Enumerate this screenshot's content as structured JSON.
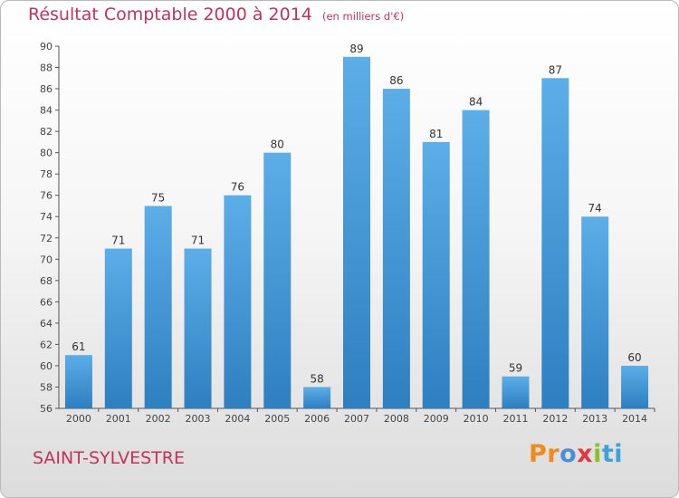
{
  "title": "Résultat Comptable 2000 à 2014",
  "unit_note": "(en milliers d'€)",
  "place": "SAINT-SYLVESTRE",
  "logo": {
    "parts": [
      "Pr",
      "o",
      "x",
      "i",
      "ti"
    ]
  },
  "colors": {
    "title": "#c3325f",
    "bar_top": "#5caee8",
    "bar_bottom": "#2d7fc0"
  },
  "chart_data": {
    "type": "bar",
    "categories": [
      "2000",
      "2001",
      "2002",
      "2003",
      "2004",
      "2005",
      "2006",
      "2007",
      "2008",
      "2009",
      "2010",
      "2011",
      "2012",
      "2013",
      "2014"
    ],
    "values": [
      61,
      71,
      75,
      71,
      76,
      80,
      58,
      89,
      86,
      81,
      84,
      59,
      87,
      74,
      60
    ],
    "title": "Résultat Comptable 2000 à 2014",
    "xlabel": "",
    "ylabel": "",
    "ylim": [
      56,
      90
    ],
    "yticks": [
      56,
      58,
      60,
      62,
      64,
      66,
      68,
      70,
      72,
      74,
      76,
      78,
      80,
      82,
      84,
      86,
      88,
      90
    ],
    "grid": false,
    "legend": "none"
  }
}
